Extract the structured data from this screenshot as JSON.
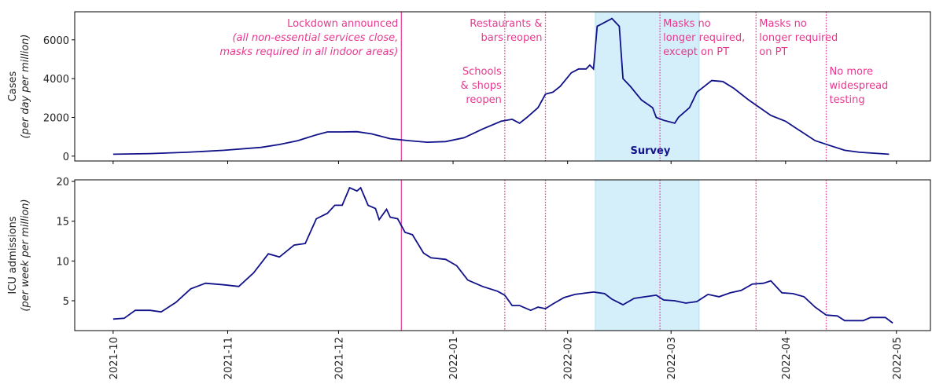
{
  "chart_data": [
    {
      "type": "line",
      "ylabel": [
        "Cases",
        "(per day per million)"
      ],
      "xlim": [
        -10.4,
        221.2
      ],
      "xticks": [
        0,
        31,
        61,
        92,
        123,
        151,
        182,
        212
      ],
      "ylim": [
        -250,
        7450
      ],
      "yticks": [
        0,
        2000,
        4000,
        6000
      ],
      "span": {
        "x": [
          130.5,
          158.6
        ],
        "label": "Survey",
        "color": "#d4eff9"
      },
      "events": [
        {
          "x": 78,
          "style": "solid",
          "side": "left",
          "lines": [
            "Lockdown announced",
            {
              "text": "(all non-essential services close,",
              "italic": true
            },
            {
              "text": "masks required in all indoor areas)",
              "italic": true
            }
          ]
        },
        {
          "x": 106,
          "style": "dotted",
          "side": "left",
          "lines": [
            "Schools",
            "& shops",
            "reopen"
          ]
        },
        {
          "x": 117,
          "style": "dotted",
          "side": "left",
          "lines": [
            "Restaurants &",
            "bars reopen"
          ]
        },
        {
          "x": 148,
          "style": "dotted",
          "side": "right",
          "lines": [
            "Masks no",
            "longer required,",
            "except on PT"
          ]
        },
        {
          "x": 174,
          "style": "dotted",
          "side": "right",
          "lines": [
            "Masks no",
            "longer required",
            "on PT"
          ]
        },
        {
          "x": 193,
          "style": "dotted",
          "side": "right",
          "lines": [
            "No more",
            "widespread",
            "testing"
          ]
        }
      ],
      "event_color": "#e8388f",
      "x": [
        0,
        10,
        20,
        30,
        40,
        45,
        50,
        55,
        58,
        62,
        66,
        70,
        75,
        80,
        85,
        90,
        95,
        100,
        105,
        108,
        110,
        112,
        115,
        117,
        119,
        121,
        124,
        126,
        128,
        129,
        130,
        131,
        133,
        135,
        137,
        138,
        140,
        143,
        146,
        147,
        149,
        152,
        153,
        156,
        158,
        162,
        165,
        168,
        172,
        175,
        178,
        182,
        186,
        190,
        194,
        198,
        202,
        206,
        210
      ],
      "series": [
        {
          "color": "#11118a",
          "values": [
            100,
            130,
            200,
            300,
            450,
            600,
            800,
            1100,
            1250,
            1250,
            1260,
            1150,
            900,
            800,
            720,
            750,
            950,
            1400,
            1800,
            1900,
            1700,
            2000,
            2500,
            3200,
            3300,
            3600,
            4300,
            4500,
            4500,
            4700,
            4500,
            6700,
            6900,
            7100,
            6700,
            4000,
            3600,
            2900,
            2500,
            2000,
            1850,
            1700,
            2000,
            2500,
            3300,
            3900,
            3850,
            3500,
            2900,
            2500,
            2100,
            1800,
            1300,
            800,
            550,
            300,
            200,
            150,
            100
          ]
        }
      ]
    },
    {
      "type": "line",
      "ylabel": [
        "ICU admissions",
        "(per week per million)"
      ],
      "xlim": [
        -10.4,
        221.2
      ],
      "xticks": [
        {
          "value": 0,
          "label": "2021-10"
        },
        {
          "value": 31,
          "label": "2021-11"
        },
        {
          "value": 61,
          "label": "2021-12"
        },
        {
          "value": 92,
          "label": "2022-01"
        },
        {
          "value": 123,
          "label": "2022-02"
        },
        {
          "value": 151,
          "label": "2022-03"
        },
        {
          "value": 182,
          "label": "2022-04"
        },
        {
          "value": 212,
          "label": "2022-05"
        }
      ],
      "ylim": [
        1.25,
        20.2
      ],
      "yticks": [
        5,
        10,
        15,
        20
      ],
      "x": [
        0,
        3,
        6,
        10,
        13,
        17,
        21,
        25,
        30,
        34,
        38,
        42,
        45,
        49,
        52,
        55,
        58,
        60,
        62,
        64,
        66,
        67,
        69,
        71,
        72,
        74,
        75,
        77,
        79,
        81,
        84,
        86,
        90,
        93,
        96,
        100,
        104,
        106,
        108,
        110,
        113,
        115,
        117,
        119,
        122,
        125,
        130,
        133,
        135,
        138,
        141,
        144,
        147,
        149,
        152,
        155,
        158,
        161,
        164,
        167,
        170,
        173,
        176,
        178,
        181,
        184,
        187,
        190,
        193,
        196,
        198,
        203,
        205,
        209,
        211
      ],
      "series": [
        {
          "color": "#11118a",
          "values": [
            2.7,
            2.8,
            3.8,
            3.8,
            3.6,
            4.8,
            6.5,
            7.2,
            7.0,
            6.8,
            8.5,
            10.9,
            10.5,
            12.0,
            12.2,
            15.3,
            16.0,
            17.0,
            17.0,
            19.2,
            18.8,
            19.2,
            17.0,
            16.6,
            15.2,
            16.5,
            15.5,
            15.3,
            13.6,
            13.3,
            11,
            10.4,
            10.2,
            9.4,
            7.6,
            6.8,
            6.2,
            5.7,
            4.4,
            4.4,
            3.8,
            4.2,
            4.0,
            4.6,
            5.4,
            5.8,
            6.1,
            5.9,
            5.2,
            4.5,
            5.3,
            5.5,
            5.7,
            5.1,
            5.0,
            4.7,
            4.9,
            5.8,
            5.5,
            6.0,
            6.3,
            7.1,
            7.2,
            7.5,
            6.0,
            5.9,
            5.5,
            4.2,
            3.2,
            3.1,
            2.5,
            2.5,
            2.9,
            2.9,
            2.2
          ]
        }
      ]
    }
  ]
}
